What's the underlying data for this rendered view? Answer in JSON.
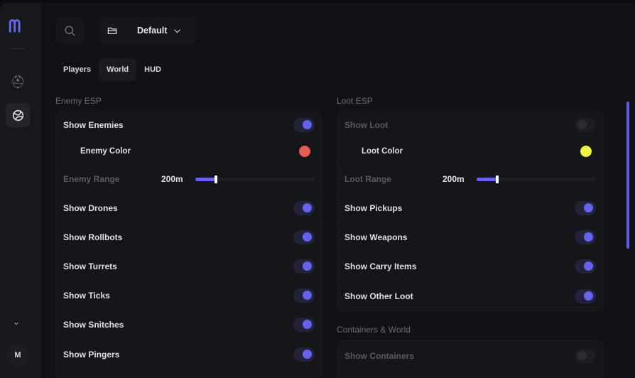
{
  "sidebar": {
    "logo": "M",
    "items": [
      {
        "icon": "helmet-icon",
        "active": false
      },
      {
        "icon": "globe-icon",
        "active": true
      }
    ],
    "expand_icon": "chevron-down-icon",
    "avatar": "M"
  },
  "toolbar": {
    "search_icon": "search-icon",
    "profile_icon": "folder-icon",
    "profile": "Default"
  },
  "tabs": [
    {
      "label": "Players",
      "active": false
    },
    {
      "label": "World",
      "active": true
    },
    {
      "label": "HUD",
      "active": false
    }
  ],
  "enemy": {
    "title": "Enemy ESP",
    "show": {
      "label": "Show Enemies",
      "on": true
    },
    "color": {
      "label": "Enemy Color",
      "value": "#e85a55"
    },
    "range": {
      "label": "Enemy Range",
      "value": "200m",
      "fraction": 0.17
    },
    "toggles": [
      {
        "label": "Show Drones",
        "on": true
      },
      {
        "label": "Show Rollbots",
        "on": true
      },
      {
        "label": "Show Turrets",
        "on": true
      },
      {
        "label": "Show Ticks",
        "on": true
      },
      {
        "label": "Show Snitches",
        "on": true
      },
      {
        "label": "Show Pingers",
        "on": true
      }
    ]
  },
  "loot": {
    "title": "Loot ESP",
    "show": {
      "label": "Show Loot",
      "on": false
    },
    "color": {
      "label": "Loot Color",
      "value": "#eef044"
    },
    "range": {
      "label": "Loot Range",
      "value": "200m",
      "fraction": 0.17
    },
    "toggles": [
      {
        "label": "Show Pickups",
        "on": true
      },
      {
        "label": "Show Weapons",
        "on": true
      },
      {
        "label": "Show Carry Items",
        "on": true
      },
      {
        "label": "Show Other Loot",
        "on": true
      }
    ]
  },
  "containers": {
    "title": "Containers & World",
    "toggles": [
      {
        "label": "Show Containers",
        "on": false
      }
    ]
  },
  "colors": {
    "accent": "#6563ee"
  }
}
